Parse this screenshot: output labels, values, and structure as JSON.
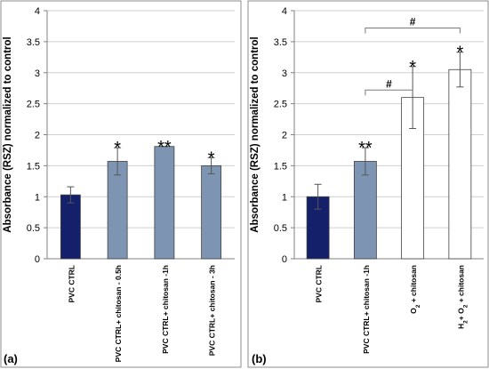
{
  "chart_data": [
    {
      "panel": "(a)",
      "type": "bar",
      "ylabel": "Absorbance (RSZ) normalized to control",
      "ylim": [
        0,
        4
      ],
      "ytick_labels": [
        "0",
        "0.5",
        "1",
        "1.5",
        "2",
        "2.5",
        "3",
        "3.5",
        "4"
      ],
      "grid": true,
      "categories": [
        "PVC CTRL",
        "PVC CTRL+ chitosan - 0.5h",
        "PVC CTRL+ chitosan -1h",
        "PVC CTRL+ chitosan - 3h"
      ],
      "values": [
        1.03,
        1.57,
        1.81,
        1.5
      ],
      "errors": [
        0.13,
        0.22,
        0.0,
        0.13
      ],
      "significance": [
        "",
        "*",
        "**",
        "*"
      ],
      "bar_colors": [
        "#15206b",
        "#7d95b3",
        "#7d95b3",
        "#7d95b3"
      ],
      "brackets": []
    },
    {
      "panel": "(b)",
      "type": "bar",
      "ylabel": "Absorbance (RSZ) normalized to control",
      "ylim": [
        0,
        4
      ],
      "ytick_labels": [
        "0",
        "0.5",
        "1",
        "1.5",
        "2",
        "2.5",
        "3",
        "3.5",
        "4"
      ],
      "grid": true,
      "categories": [
        {
          "parts": [
            {
              "t": "PVC CTRL"
            }
          ]
        },
        {
          "parts": [
            {
              "t": "PVC CTRL+ chitosan -1h"
            }
          ]
        },
        {
          "parts": [
            {
              "t": "O"
            },
            {
              "t": "2",
              "sub": true
            },
            {
              "t": " + chitosan"
            }
          ]
        },
        {
          "parts": [
            {
              "t": "H"
            },
            {
              "t": "2",
              "sub": true
            },
            {
              "t": "+ O"
            },
            {
              "t": "2",
              "sub": true
            },
            {
              "t": " + chitosan"
            }
          ]
        }
      ],
      "values": [
        1.0,
        1.57,
        2.6,
        3.05
      ],
      "errors": [
        0.2,
        0.22,
        0.5,
        0.28
      ],
      "significance": [
        "",
        "**",
        "*",
        "*"
      ],
      "bar_colors": [
        "#15206b",
        "#7d95b3",
        "#ffffff",
        "#ffffff"
      ],
      "brackets": [
        {
          "from": 1,
          "to": 2,
          "y": 2.72,
          "label": "#"
        },
        {
          "from": 1,
          "to": 3,
          "y": 3.72,
          "label": "#"
        }
      ]
    }
  ]
}
